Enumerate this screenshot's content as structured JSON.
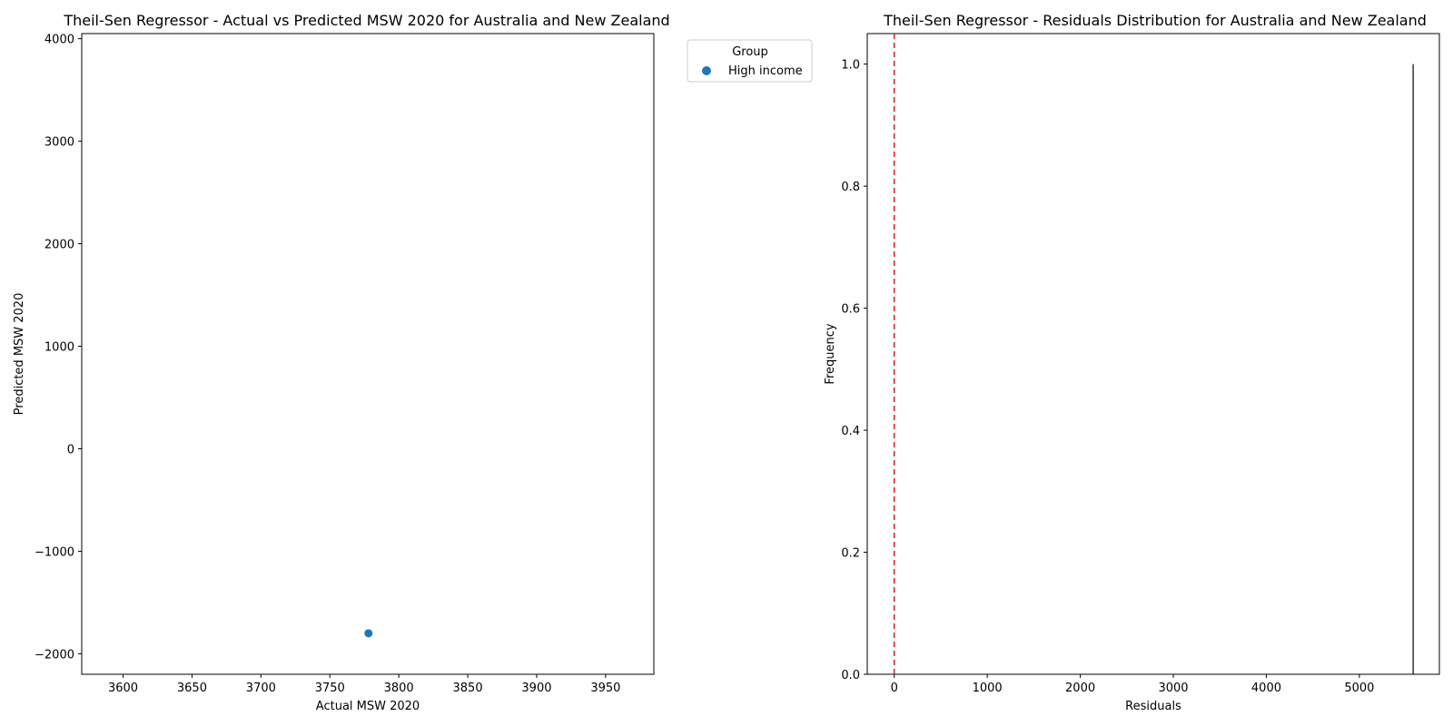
{
  "chart_data": [
    {
      "type": "scatter",
      "title": "Theil-Sen Regressor - Actual vs Predicted MSW 2020 for Australia and New Zealand",
      "xlabel": "Actual MSW 2020",
      "ylabel": "Predicted MSW 2020",
      "xlim": [
        3570,
        3985
      ],
      "ylim": [
        -2200,
        4050
      ],
      "x_ticks": [
        3600,
        3650,
        3700,
        3750,
        3800,
        3850,
        3900,
        3950
      ],
      "y_ticks": [
        -2000,
        -1000,
        0,
        1000,
        2000,
        3000,
        4000
      ],
      "x_tick_labels": [
        "3600",
        "3650",
        "3700",
        "3750",
        "3800",
        "3850",
        "3900",
        "3950"
      ],
      "y_tick_labels": [
        "−2000",
        "−1000",
        "0",
        "1000",
        "2000",
        "3000",
        "4000"
      ],
      "legend": {
        "title": "Group",
        "placement": "upper-left outside right",
        "entries": [
          "High income"
        ]
      },
      "series": [
        {
          "name": "High income",
          "color": "#1f77b4",
          "points": [
            {
              "x": 3778,
              "y": -1800
            }
          ]
        }
      ],
      "grid": false
    },
    {
      "type": "bar",
      "title": "Theil-Sen Regressor - Residuals Distribution for Australia and New Zealand",
      "xlabel": "Residuals",
      "ylabel": "Frequency",
      "xlim": [
        -290,
        5860
      ],
      "ylim": [
        0,
        1.05
      ],
      "x_ticks": [
        0,
        1000,
        2000,
        3000,
        4000,
        5000
      ],
      "y_ticks": [
        0,
        0.2,
        0.4,
        0.6,
        0.8,
        1.0
      ],
      "x_tick_labels": [
        "0",
        "1000",
        "2000",
        "3000",
        "4000",
        "5000"
      ],
      "y_tick_labels": [
        "0.0",
        "0.2",
        "0.4",
        "0.6",
        "0.8",
        "1.0"
      ],
      "bins": [
        {
          "x": 5578,
          "value": 1.0
        }
      ],
      "reference_line": {
        "x": 0,
        "color": "#d62728",
        "style": "dashed"
      },
      "grid": false
    }
  ]
}
